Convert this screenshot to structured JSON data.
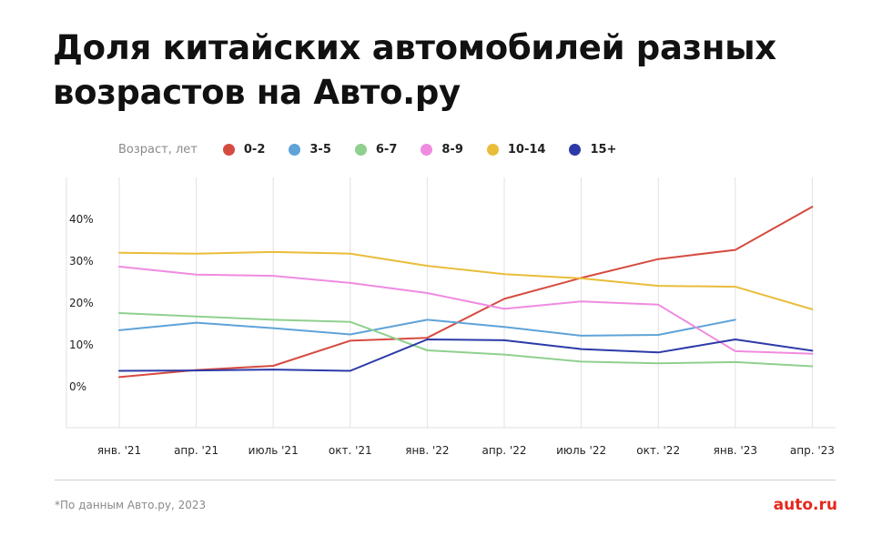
{
  "title": "Доля китайских автомобилей разных возрастов на Авто.ру",
  "legend": {
    "caption": "Возраст, лет",
    "items": [
      {
        "label": "0-2",
        "color": "#d64b40"
      },
      {
        "label": "3-5",
        "color": "#5fa3d8"
      },
      {
        "label": "6-7",
        "color": "#8fd08f"
      },
      {
        "label": "8-9",
        "color": "#f08be0"
      },
      {
        "label": "10-14",
        "color": "#e9bd3a"
      },
      {
        "label": "15+",
        "color": "#2c3aa8"
      }
    ]
  },
  "chart_data": {
    "type": "line",
    "x": [
      "янв. '21",
      "апр. '21",
      "июль '21",
      "окт. '21",
      "янв. '22",
      "апр. '22",
      "июль '22",
      "окт. '22",
      "янв. '23",
      "апр. '23"
    ],
    "y_ticks": [
      "0%",
      "10%",
      "20%",
      "30%",
      "40%"
    ],
    "ylim": [
      0,
      40
    ],
    "grid": "vertical",
    "legend_position": "top",
    "series": [
      {
        "name": "0-2",
        "color": "#d64b40",
        "values": [
          2.3,
          4.0,
          5.0,
          11.0,
          11.7,
          21.0,
          26.0,
          30.5,
          32.7,
          43.0
        ]
      },
      {
        "name": "3-5",
        "color": "#5fa3d8",
        "values": [
          13.5,
          15.3,
          14.0,
          12.5,
          16.0,
          14.3,
          12.2,
          12.4,
          16.0,
          null
        ]
      },
      {
        "name": "6-7",
        "color": "#8fd08f",
        "values": [
          17.6,
          16.8,
          16.0,
          15.5,
          8.7,
          7.7,
          6.0,
          5.6,
          5.9,
          4.9
        ]
      },
      {
        "name": "8-9",
        "color": "#f08be0",
        "values": [
          28.7,
          26.8,
          26.5,
          24.8,
          22.4,
          18.6,
          20.4,
          19.6,
          8.5,
          7.9
        ]
      },
      {
        "name": "10-14",
        "color": "#e9bd3a",
        "values": [
          32.0,
          31.8,
          32.2,
          31.8,
          28.9,
          26.9,
          25.9,
          24.1,
          23.9,
          18.5
        ]
      },
      {
        "name": "15+",
        "color": "#2c3aa8",
        "values": [
          3.8,
          3.9,
          4.1,
          3.8,
          11.3,
          11.1,
          9.0,
          8.2,
          11.3,
          8.6
        ]
      }
    ]
  },
  "footer": {
    "source": "*По данным Авто.ру, 2023",
    "brand": "auto.ru"
  }
}
